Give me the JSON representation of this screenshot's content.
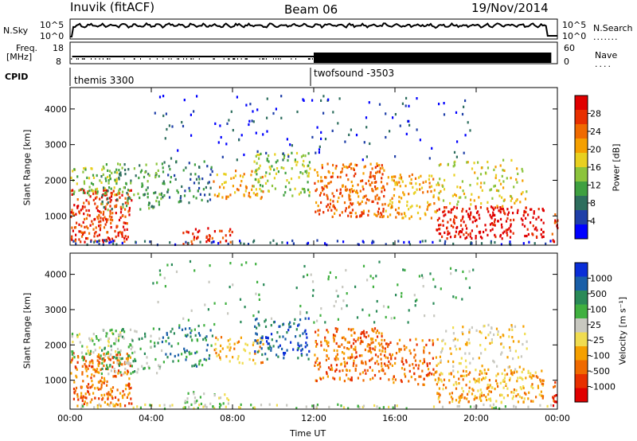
{
  "header": {
    "station": "Inuvik (fitACF)",
    "beam": "Beam 06",
    "date": "19/Nov/2014"
  },
  "strip_nsky": {
    "label": "N.Sky",
    "right_label": "N.Search",
    "ticks": [
      "10^5",
      "10^0"
    ],
    "right_ticks": [
      "10^5",
      "10^0"
    ]
  },
  "strip_freq": {
    "label_top": "Freq.",
    "label_bottom": "[MHz]",
    "ticks": [
      "18",
      "8"
    ],
    "right_label": "Nave",
    "right_ticks": [
      "60",
      "0"
    ]
  },
  "strip_cpid": {
    "label": "CPID",
    "programs": [
      {
        "name": "themis 3300",
        "start_hour": 0
      },
      {
        "name": "twofsound -3503",
        "start_hour": 12
      }
    ]
  },
  "colors": {
    "power": [
      "#0000ff",
      "#1f3fa8",
      "#2e6e5e",
      "#3fa040",
      "#8cc43c",
      "#e8d020",
      "#f5a000",
      "#f06a00",
      "#e83000",
      "#e00000"
    ],
    "velocity": [
      "#0a2ed8",
      "#1a5fa8",
      "#2a8a58",
      "#40b040",
      "#c8c8c0",
      "#f0dc50",
      "#f5a000",
      "#f06a00",
      "#e83000",
      "#e00000"
    ]
  },
  "chart_data": [
    {
      "type": "heatmap",
      "title": "Power",
      "ylabel": "Slant Range [km]",
      "xlabel": "",
      "colorbar_label": "Power [dB]",
      "colorbar_ticks": [
        "28",
        "24",
        "20",
        "16",
        "12",
        "8",
        "4"
      ],
      "colorbar_range": [
        0,
        32
      ],
      "x_range_hours": [
        0,
        24
      ],
      "ylim": [
        180,
        4600
      ],
      "yticks": [
        "4000",
        "3000",
        "2000",
        "1000"
      ],
      "ytick_values": [
        4000,
        3000,
        2000,
        1000
      ]
    },
    {
      "type": "heatmap",
      "title": "Velocity",
      "ylabel": "Slant Range [km]",
      "xlabel": "Time UT",
      "colorbar_label": "Velocity [m s⁻¹]",
      "colorbar_ticks": [
        "1000",
        "500",
        "100",
        "25",
        "-25",
        "-100",
        "-500",
        "-1000"
      ],
      "x_range_hours": [
        0,
        24
      ],
      "ylim": [
        180,
        4600
      ],
      "yticks": [
        "4000",
        "3000",
        "2000",
        "1000"
      ],
      "ytick_values": [
        4000,
        3000,
        2000,
        1000
      ],
      "xticks": [
        "00:00",
        "04:00",
        "08:00",
        "12:00",
        "16:00",
        "20:00",
        "00:00"
      ],
      "xtick_hours": [
        0,
        4,
        8,
        12,
        16,
        20,
        24
      ]
    }
  ]
}
